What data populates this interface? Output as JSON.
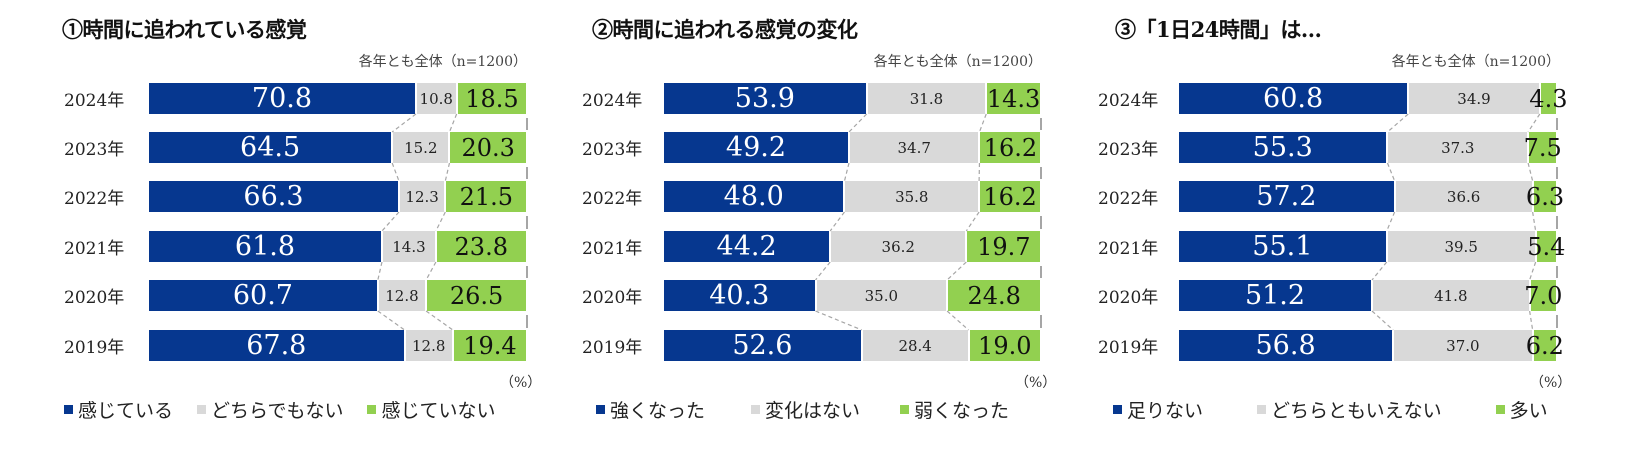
{
  "chart_data": [
    {
      "type": "bar",
      "orientation": "horizontal",
      "stacked": true,
      "title": "①時間に追われている感覚",
      "note": "各年とも全体（n=1200）",
      "unit_label": "（%）",
      "categories": [
        "2024年",
        "2023年",
        "2022年",
        "2021年",
        "2020年",
        "2019年"
      ],
      "series": [
        {
          "name": "感じている",
          "color": "#06378f",
          "values": [
            70.8,
            64.5,
            66.3,
            61.8,
            60.7,
            67.8
          ]
        },
        {
          "name": "どちらでもない",
          "color": "#d9d9d9",
          "values": [
            10.8,
            15.2,
            12.3,
            14.3,
            12.8,
            12.8
          ]
        },
        {
          "name": "感じていない",
          "color": "#92d050",
          "values": [
            18.5,
            20.3,
            21.5,
            23.8,
            26.5,
            19.4
          ]
        }
      ],
      "xlim": [
        0,
        100
      ],
      "legend": "bottom"
    },
    {
      "type": "bar",
      "orientation": "horizontal",
      "stacked": true,
      "title": "②時間に追われる感覚の変化",
      "note": "各年とも全体（n=1200）",
      "unit_label": "（%）",
      "categories": [
        "2024年",
        "2023年",
        "2022年",
        "2021年",
        "2020年",
        "2019年"
      ],
      "series": [
        {
          "name": "強くなった",
          "color": "#06378f",
          "values": [
            53.9,
            49.2,
            48.0,
            44.2,
            40.3,
            52.6
          ]
        },
        {
          "name": "変化はない",
          "color": "#d9d9d9",
          "values": [
            31.8,
            34.7,
            35.8,
            36.2,
            35.0,
            28.4
          ]
        },
        {
          "name": "弱くなった",
          "color": "#92d050",
          "values": [
            14.3,
            16.2,
            16.2,
            19.7,
            24.8,
            19.0
          ]
        }
      ],
      "xlim": [
        0,
        100
      ],
      "legend": "bottom"
    },
    {
      "type": "bar",
      "orientation": "horizontal",
      "stacked": true,
      "title": "③「1日24時間」は…",
      "note": "各年とも全体（n=1200）",
      "unit_label": "（%）",
      "categories": [
        "2024年",
        "2023年",
        "2022年",
        "2021年",
        "2020年",
        "2019年"
      ],
      "series": [
        {
          "name": "足りない",
          "color": "#06378f",
          "values": [
            60.8,
            55.3,
            57.2,
            55.1,
            51.2,
            56.8
          ]
        },
        {
          "name": "どちらともいえない",
          "color": "#d9d9d9",
          "values": [
            34.9,
            37.3,
            36.6,
            39.5,
            41.8,
            37.0
          ]
        },
        {
          "name": "多い",
          "color": "#92d050",
          "values": [
            4.3,
            7.5,
            6.3,
            5.4,
            7.0,
            6.2
          ]
        }
      ],
      "xlim": [
        0,
        100
      ],
      "legend": "bottom"
    }
  ]
}
